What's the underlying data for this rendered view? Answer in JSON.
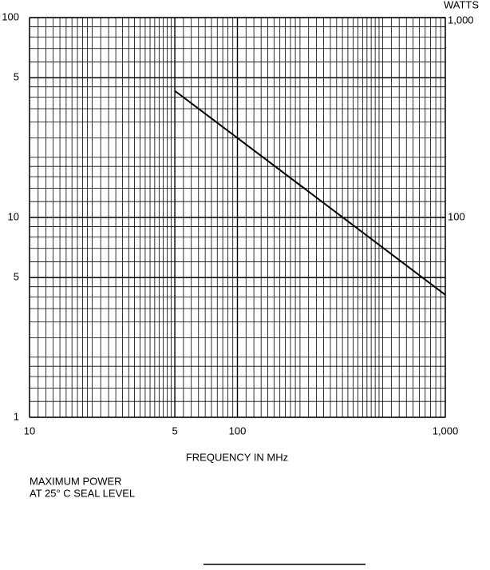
{
  "chart_data": {
    "type": "line",
    "x_label": "FREQUENCY IN MHz",
    "y2_label": "WATTS",
    "annotations": [
      "MAXIMUM POWER",
      "AT 25° C  SEAL LEVEL"
    ],
    "x": [
      50,
      100,
      1000
    ],
    "values": [
      43,
      25,
      4.1
    ],
    "color": "#000000",
    "xscale": "log",
    "yscale": "log",
    "xlim": [
      10,
      1000
    ],
    "ylim": [
      1,
      100
    ],
    "y2lim": [
      10,
      1000
    ],
    "xticks": [
      10,
      {
        "value": 50,
        "label": "5"
      },
      100,
      {
        "value": 1000,
        "label": "1,000"
      }
    ],
    "yticks": [
      100,
      {
        "value": 50,
        "label": "5"
      },
      10,
      5,
      1
    ],
    "y2ticks": [
      {
        "value": 1000,
        "label": "1,000"
      },
      100
    ],
    "grid": true,
    "xgrid": [
      10,
      11,
      12,
      13,
      14,
      15,
      16,
      17,
      18,
      19,
      20,
      22,
      24,
      26,
      28,
      30,
      32,
      34,
      36,
      38,
      40,
      42,
      44,
      46,
      48,
      50,
      55,
      60,
      65,
      70,
      75,
      80,
      85,
      90,
      95,
      100,
      110,
      120,
      130,
      140,
      150,
      160,
      170,
      180,
      190,
      200,
      220,
      240,
      260,
      280,
      300,
      320,
      340,
      360,
      380,
      400,
      420,
      440,
      460,
      480,
      500,
      550,
      600,
      650,
      700,
      750,
      800,
      850,
      900,
      950,
      1000
    ],
    "ygrid": [
      1,
      1.2,
      1.4,
      1.6,
      1.8,
      2,
      2.5,
      3,
      3.5,
      4,
      4.5,
      5,
      6,
      7,
      8,
      9,
      10,
      12,
      14,
      16,
      18,
      20,
      25,
      30,
      35,
      40,
      45,
      50,
      60,
      70,
      80,
      90,
      100
    ]
  }
}
